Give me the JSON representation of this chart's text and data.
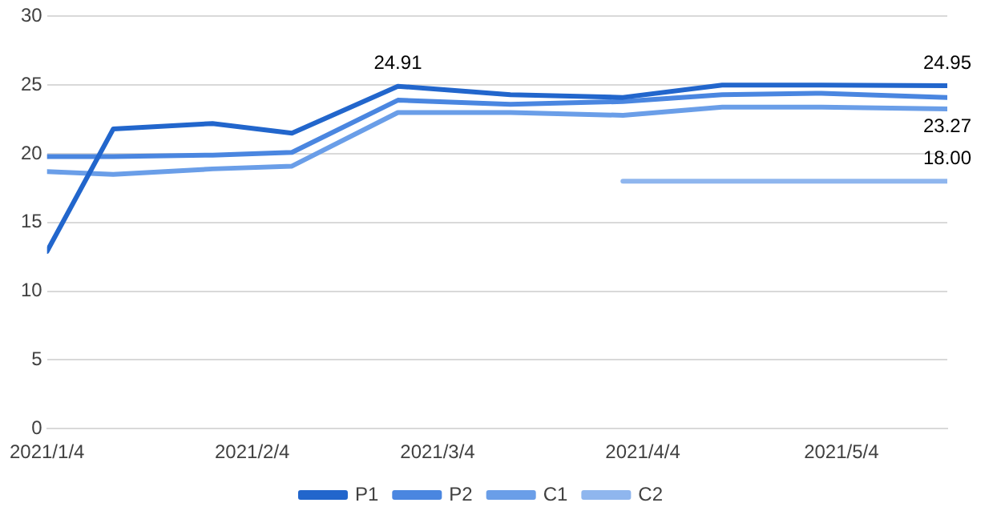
{
  "chart_data": {
    "type": "line",
    "x": [
      "2021-01-04",
      "2021-01-14",
      "2021-01-29",
      "2021-02-10",
      "2021-02-26",
      "2021-03-15",
      "2021-04-01",
      "2021-04-16",
      "2021-05-01",
      "2021-05-20"
    ],
    "xlim": [
      "2021-01-04",
      "2021-05-20"
    ],
    "xticks": [
      {
        "value": "2021-01-04",
        "label": "2021/1/4"
      },
      {
        "value": "2021-02-04",
        "label": "2021/2/4"
      },
      {
        "value": "2021-03-04",
        "label": "2021/3/4"
      },
      {
        "value": "2021-04-04",
        "label": "2021/4/4"
      },
      {
        "value": "2021-05-04",
        "label": "2021/5/4"
      }
    ],
    "ylim": [
      0,
      30
    ],
    "yticks": [
      0,
      5,
      10,
      15,
      20,
      25,
      30
    ],
    "grid": "y",
    "legend": "bottom",
    "marker": "none",
    "line_style": "solid",
    "series": [
      {
        "name": "P1",
        "color": "#2266cc",
        "values": [
          12.9,
          21.8,
          22.2,
          21.5,
          24.91,
          24.3,
          24.1,
          25.0,
          25.0,
          24.95
        ],
        "value_labels": [
          null,
          null,
          null,
          null,
          "24.91",
          null,
          null,
          null,
          null,
          "24.95"
        ]
      },
      {
        "name": "P2",
        "color": "#4a86e0",
        "values": [
          19.8,
          19.8,
          19.9,
          20.1,
          23.9,
          23.6,
          23.8,
          24.3,
          24.4,
          24.1
        ]
      },
      {
        "name": "C1",
        "color": "#6a9ee8",
        "values": [
          18.7,
          18.5,
          18.9,
          19.1,
          23.0,
          23.0,
          22.8,
          23.4,
          23.4,
          23.27
        ],
        "value_labels": [
          null,
          null,
          null,
          null,
          null,
          null,
          null,
          null,
          null,
          "23.27"
        ]
      },
      {
        "name": "C2",
        "color": "#8fb6ee",
        "values": [
          null,
          null,
          null,
          null,
          null,
          null,
          18.0,
          18.0,
          18.0,
          18.0
        ],
        "value_labels": [
          null,
          null,
          null,
          null,
          null,
          null,
          null,
          null,
          null,
          "18.00"
        ]
      }
    ]
  }
}
